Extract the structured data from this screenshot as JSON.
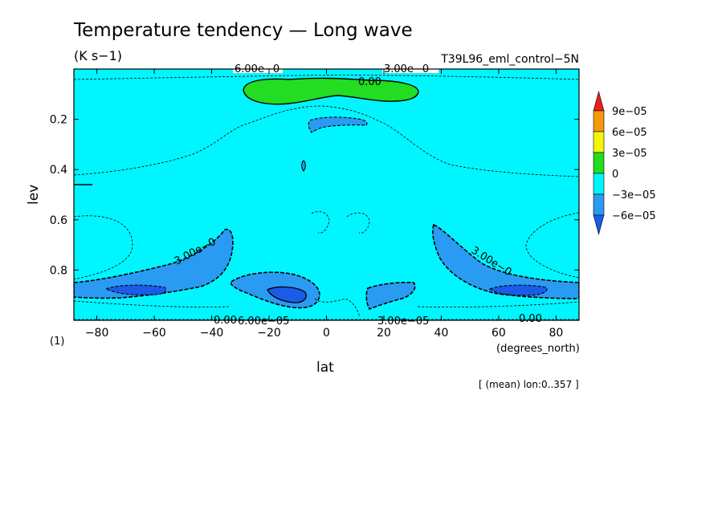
{
  "chart_data": {
    "type": "heatmap",
    "title": "Temperature tendency — Long wave",
    "units": "(K s−1)",
    "experiment": "T39L96_eml_control−5N",
    "xlabel": "lat",
    "x_units": "(degrees_north)",
    "ylabel": "lev",
    "y_units": "(1)",
    "xlim": [
      -88,
      88
    ],
    "ylim": [
      1.0,
      0.0
    ],
    "x_ticks": [
      -80,
      -60,
      -40,
      -20,
      0,
      20,
      40,
      60,
      80
    ],
    "x_tick_labels": [
      "−80",
      "−60",
      "−40",
      "−20",
      "0",
      "20",
      "40",
      "60",
      "80"
    ],
    "y_ticks": [
      0.2,
      0.4,
      0.6,
      0.8
    ],
    "y_tick_labels": [
      "0.2",
      "0.4",
      "0.6",
      "0.8"
    ],
    "footnote": "[ (mean) lon:0..357 ]",
    "colorbar": {
      "levels": [
        "9e−05",
        "6e−05",
        "3e−05",
        "0",
        "−3e−05",
        "−6e−05"
      ],
      "colors": [
        "#e8201c",
        "#f59a0c",
        "#f5f50a",
        "#22dd22",
        "#00f5ff",
        "#2a9bf2",
        "#1a5ce8"
      ]
    },
    "contour_labels": [
      "6.00e−0",
      "3.00e−0",
      "0.00",
      "3.00e−0",
      "3.00e−0",
      "0.00",
      "6.00e−05",
      "3.00e−05",
      "0.00"
    ],
    "background_value_range": [
      -3e-05,
      0
    ],
    "regions": [
      {
        "name": "upper-level warming",
        "range": [
          0,
          3e-05
        ],
        "lat": [
          -35,
          40
        ],
        "lev": [
          0.04,
          0.12
        ]
      },
      {
        "name": "upper-level cooling",
        "range": [
          -6e-05,
          -3e-05
        ],
        "lat": [
          -7,
          18
        ],
        "lev": [
          0.19,
          0.24
        ]
      },
      {
        "name": "SH low-level cooling",
        "range": [
          -6e-05,
          -3e-05
        ],
        "lat": [
          -88,
          -30
        ],
        "lev": [
          0.64,
          0.93
        ]
      },
      {
        "name": "SH low-level cooling core",
        "range": [
          -9e-05,
          -6e-05
        ],
        "lat": [
          -76,
          -60
        ],
        "lev": [
          0.85,
          0.9
        ]
      },
      {
        "name": "subtropical cooling",
        "range": [
          -6e-05,
          -3e-05
        ],
        "lat": [
          -33,
          -2
        ],
        "lev": [
          0.81,
          0.97
        ]
      },
      {
        "name": "subtropical cooling core",
        "range": [
          -9e-05,
          -6e-05
        ],
        "lat": [
          -20,
          -8
        ],
        "lev": [
          0.86,
          0.93
        ]
      },
      {
        "name": "NH subtropical cooling",
        "range": [
          -6e-05,
          -3e-05
        ],
        "lat": [
          15,
          32
        ],
        "lev": [
          0.83,
          0.95
        ]
      },
      {
        "name": "NH low-level cooling",
        "range": [
          -6e-05,
          -3e-05
        ],
        "lat": [
          37,
          88
        ],
        "lev": [
          0.62,
          0.92
        ]
      },
      {
        "name": "NH low-level cooling core",
        "range": [
          -9e-05,
          -6e-05
        ],
        "lat": [
          57,
          77
        ],
        "lev": [
          0.85,
          0.9
        ]
      }
    ]
  }
}
